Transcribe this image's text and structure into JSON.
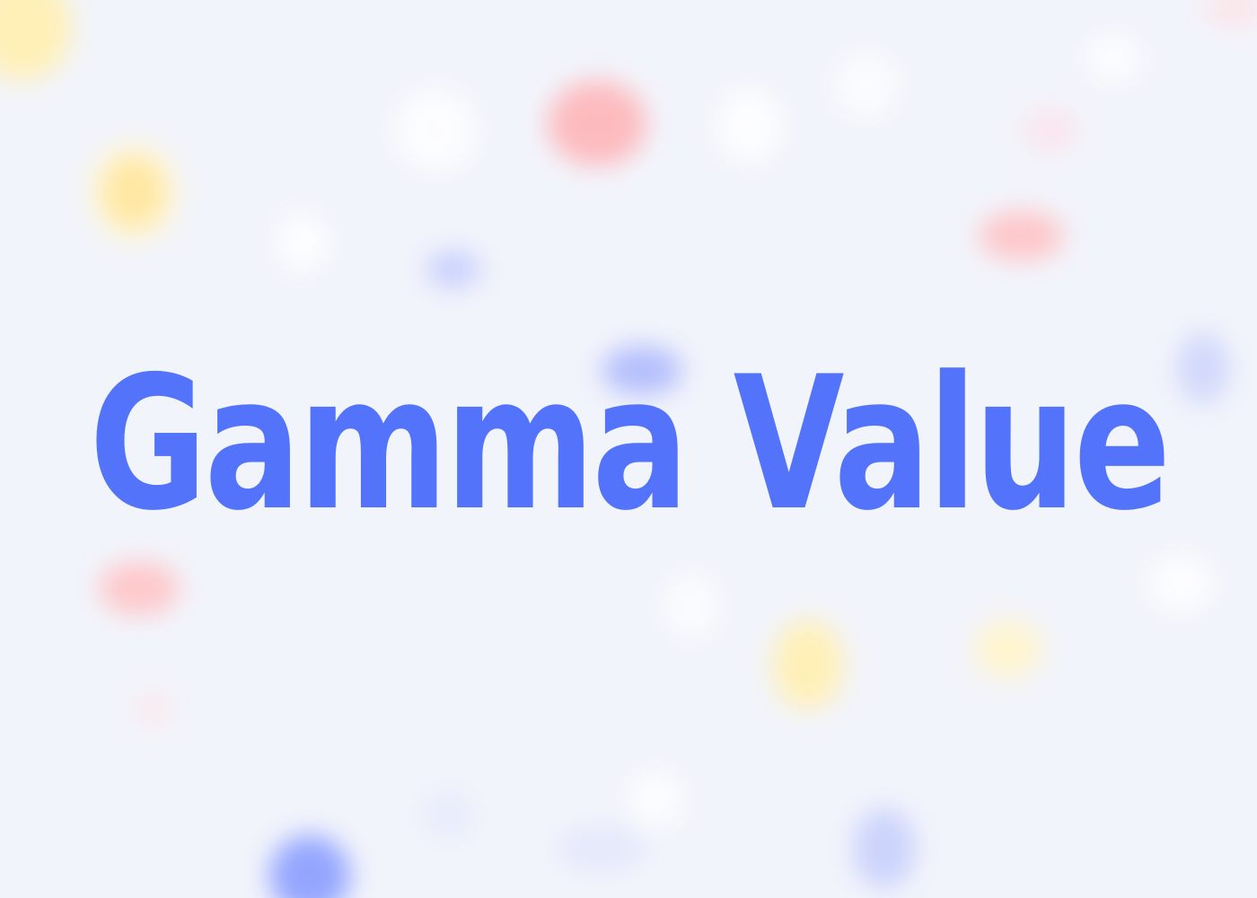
{
  "title": "Gamma Value",
  "colors": {
    "title": "#5273fa",
    "background": "#f2f4fb",
    "accent_blue": "#7c8cff",
    "accent_red": "#ff8f95",
    "accent_yellow": "#ffe27a"
  }
}
